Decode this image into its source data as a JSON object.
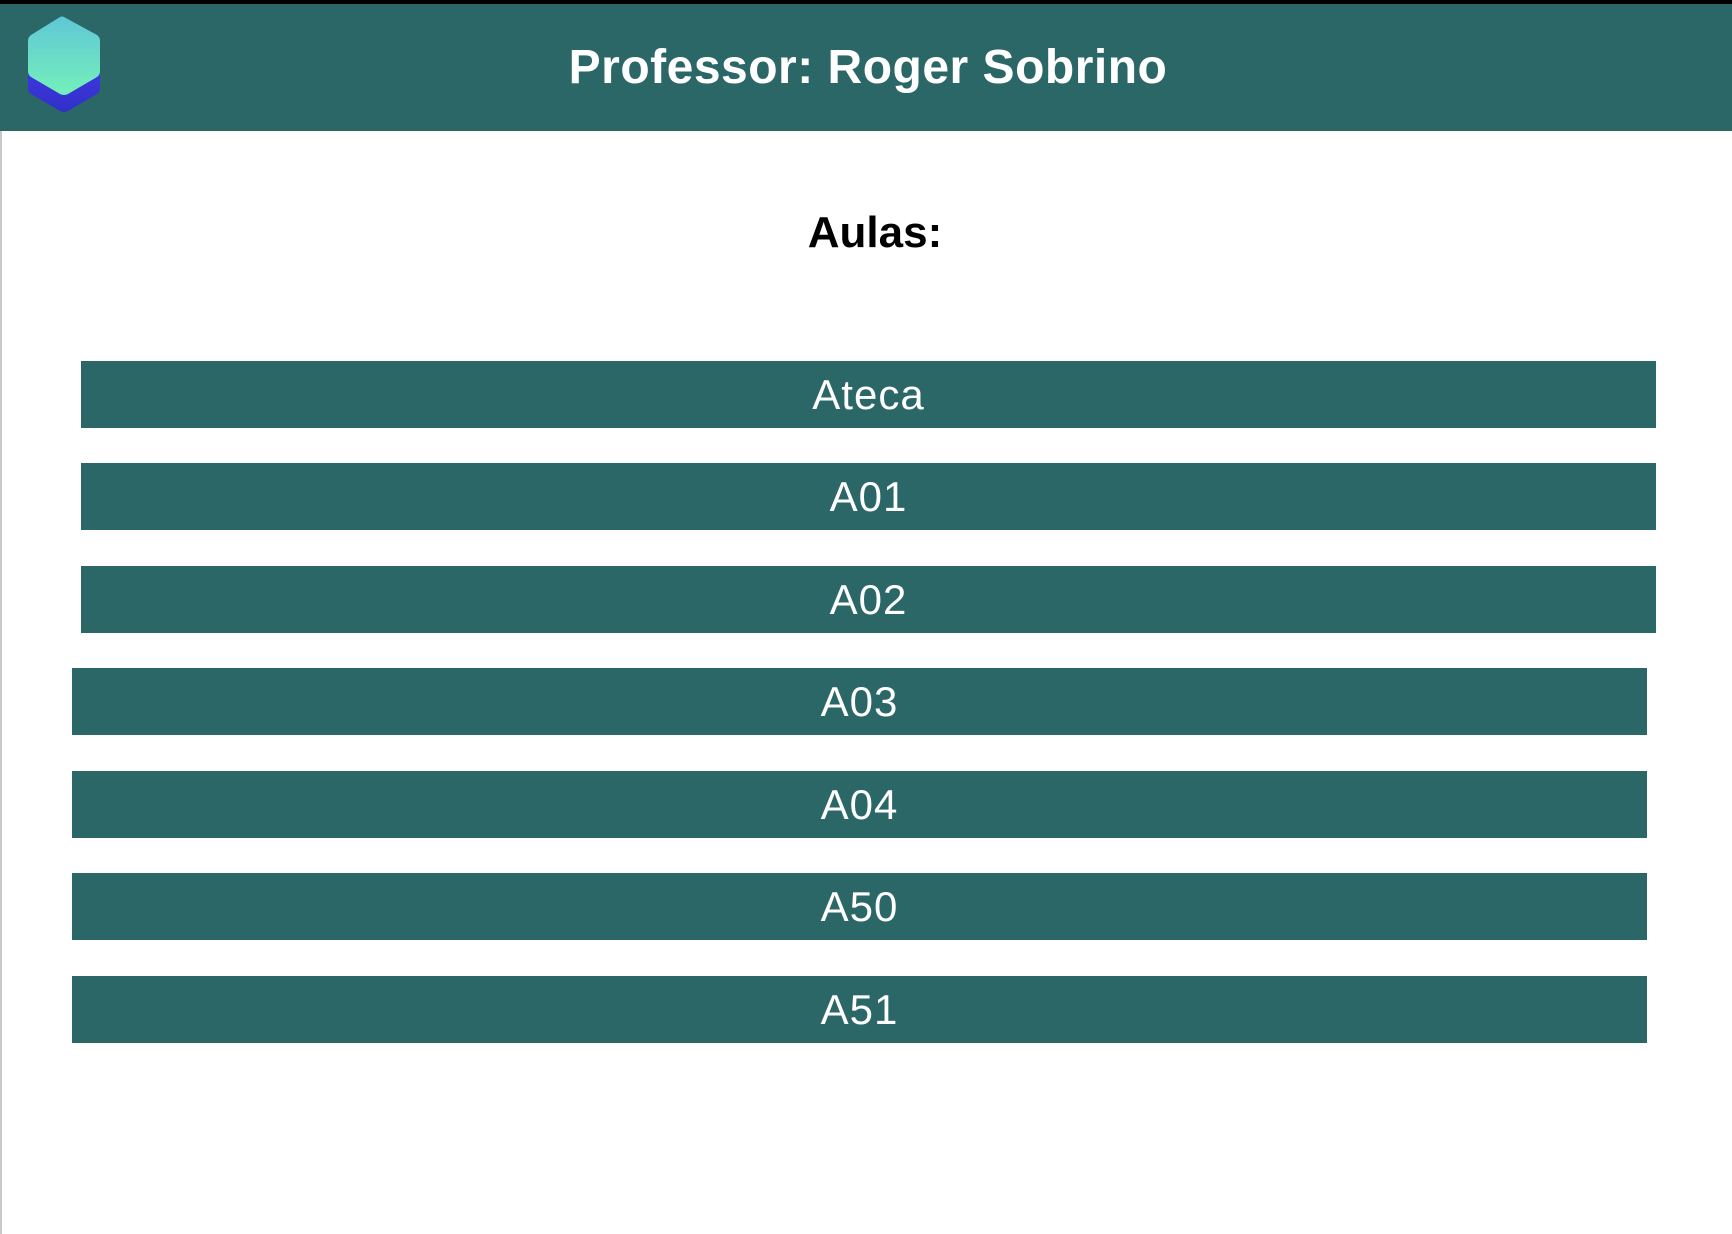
{
  "header": {
    "title": "Professor: Roger Sobrino",
    "logo_icon": "hexagon-logo-icon",
    "background_color": "#2c6768"
  },
  "main": {
    "section_title": "Aulas:",
    "classes": [
      {
        "label": "Ateca"
      },
      {
        "label": "A01"
      },
      {
        "label": "A02"
      },
      {
        "label": "A03"
      },
      {
        "label": "A04"
      },
      {
        "label": "A50"
      },
      {
        "label": "A51"
      }
    ]
  },
  "colors": {
    "primary": "#2c6768",
    "text_on_primary": "#ffffff",
    "logo_top": "#6ee8c0",
    "logo_bottom": "#3b3fe0"
  }
}
